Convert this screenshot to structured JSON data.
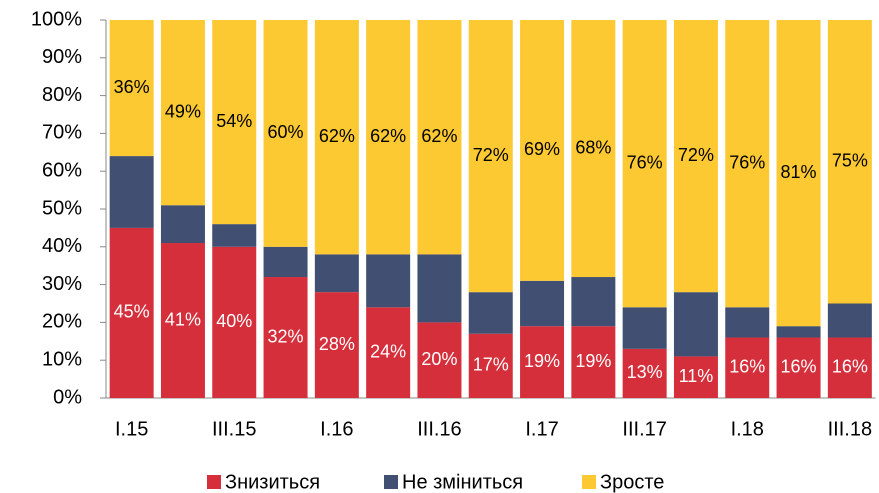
{
  "chart_data": {
    "type": "stacked_bar",
    "categories": [
      "I.15",
      null,
      "III.15",
      null,
      "I.16",
      null,
      "III.16",
      null,
      "I.17",
      null,
      "III.17",
      null,
      "I.18",
      null,
      "III.18"
    ],
    "series": [
      {
        "name": "Знизиться",
        "color": "#d52f3c",
        "values": [
          45,
          41,
          40,
          32,
          28,
          24,
          20,
          17,
          19,
          19,
          13,
          11,
          16,
          16,
          16
        ],
        "value_labels": [
          "45%",
          "41%",
          "40%",
          "32%",
          "28%",
          "24%",
          "20%",
          "17%",
          "19%",
          "19%",
          "13%",
          "11%",
          "16%",
          "16%",
          "16%"
        ]
      },
      {
        "name": "Не зміниться",
        "color": "#414f72",
        "values": [
          19,
          10,
          6,
          8,
          10,
          14,
          18,
          11,
          12,
          13,
          11,
          17,
          8,
          3,
          9
        ]
      },
      {
        "name": "Зросте",
        "color": "#fcc932",
        "values": [
          36,
          49,
          54,
          60,
          62,
          62,
          62,
          72,
          69,
          68,
          76,
          72,
          76,
          81,
          75
        ],
        "value_labels": [
          "36%",
          "49%",
          "54%",
          "60%",
          "62%",
          "62%",
          "62%",
          "72%",
          "69%",
          "68%",
          "76%",
          "72%",
          "76%",
          "81%",
          "75%"
        ]
      }
    ],
    "ylim": [
      0,
      100
    ],
    "yticks": [
      {
        "value": 0,
        "label": "0%"
      },
      {
        "value": 10,
        "label": "10%"
      },
      {
        "value": 20,
        "label": "20%"
      },
      {
        "value": 30,
        "label": "30%"
      },
      {
        "value": 40,
        "label": "40%"
      },
      {
        "value": 50,
        "label": "50%"
      },
      {
        "value": 60,
        "label": "60%"
      },
      {
        "value": 70,
        "label": "70%"
      },
      {
        "value": 80,
        "label": "80%"
      },
      {
        "value": 90,
        "label": "90%"
      },
      {
        "value": 100,
        "label": "100%"
      }
    ],
    "legend": "bottom"
  }
}
